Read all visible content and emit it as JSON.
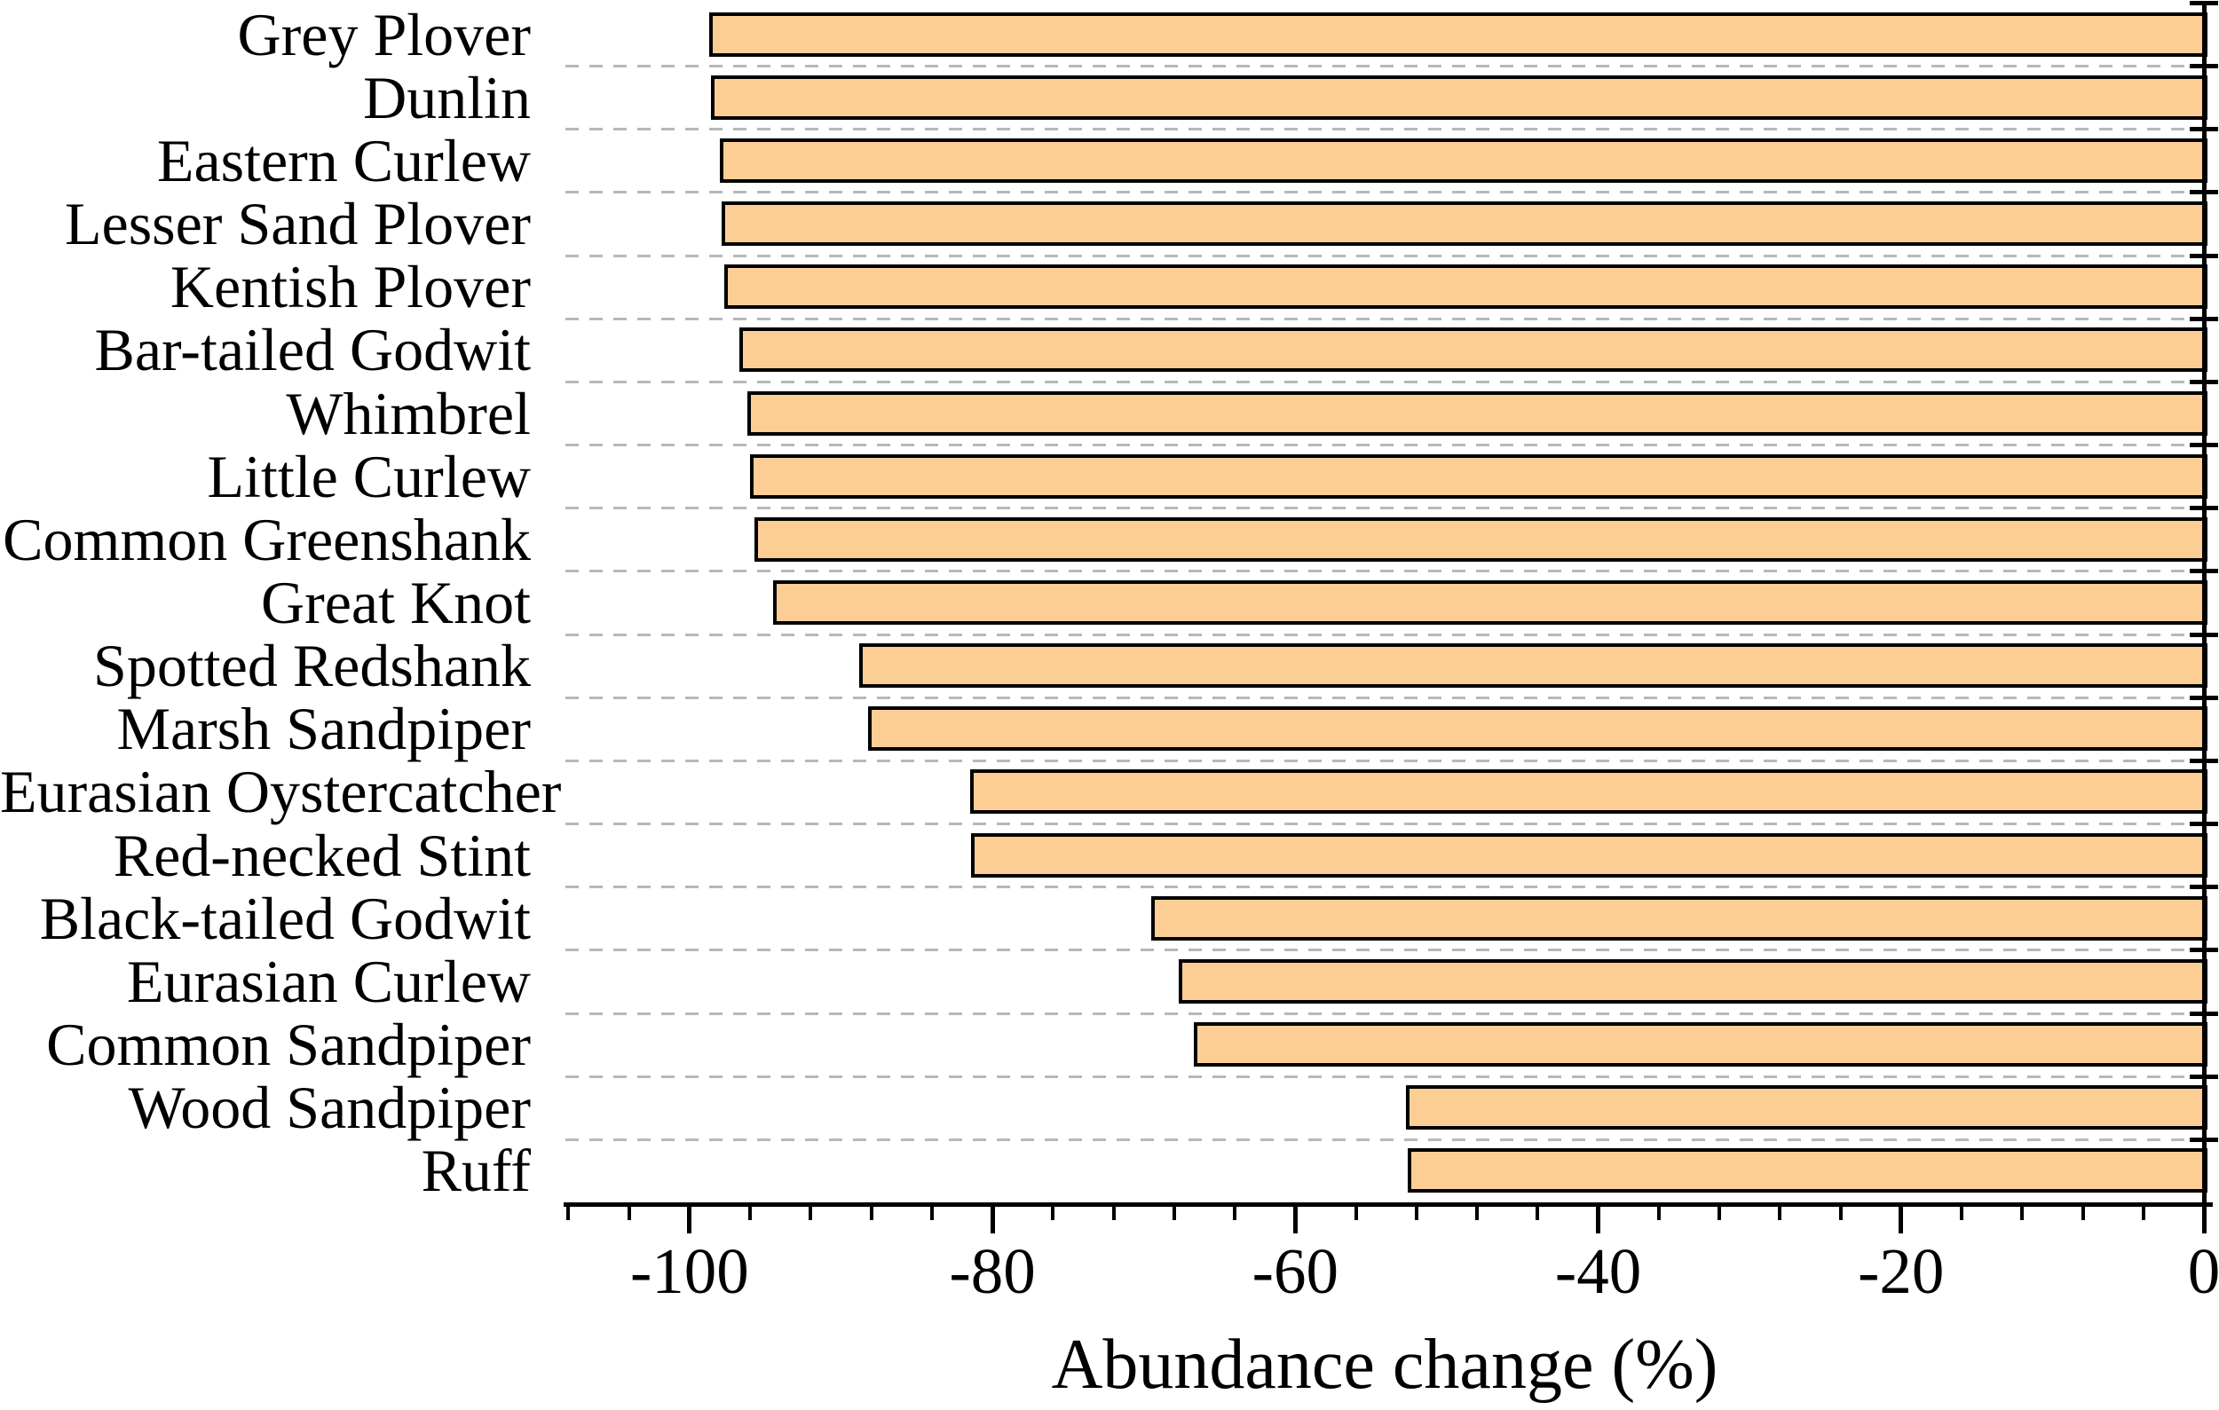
{
  "chart_data": {
    "type": "bar",
    "orientation": "horizontal",
    "title": "",
    "xlabel": "Abundance change (%)",
    "ylabel": "",
    "categories": [
      "Grey Plover",
      "Dunlin",
      "Eastern Curlew",
      "Lesser Sand Plover",
      "Kentish Plover",
      "Bar-tailed Godwit",
      "Whimbrel",
      "Little Curlew",
      "Common Greenshank",
      "Great Knot",
      "Spotted Redshank",
      "Marsh Sandpiper",
      "Eurasian Oystercatcher",
      "Red-necked Stint",
      "Black-tailed Godwit",
      "Eurasian Curlew",
      "Common Sandpiper",
      "Wood Sandpiper",
      "Ruff"
    ],
    "values": [
      -98.7,
      -98.6,
      -98.0,
      -97.9,
      -97.7,
      -96.7,
      -96.2,
      -96.0,
      -95.7,
      -94.5,
      -88.8,
      -88.2,
      -81.5,
      -81.4,
      -69.5,
      -67.7,
      -66.7,
      -52.7,
      -52.6
    ],
    "xlim": [
      -108.2,
      0
    ],
    "x_major_ticks": [
      -100,
      -80,
      -60,
      -40,
      -20,
      0
    ],
    "x_major_tick_labels": [
      "-100",
      "-80",
      "-60",
      "-40",
      "-20",
      "0"
    ],
    "x_minor_tick_step": 4,
    "grid": "dashed horizontal lines between category rows",
    "legend": "none",
    "colors": {
      "bar_fill": "#FDCE94",
      "bar_stroke": "#000000",
      "grid_line": "#B8B8B8",
      "axis": "#000000",
      "background": "#FFFFFF"
    }
  }
}
